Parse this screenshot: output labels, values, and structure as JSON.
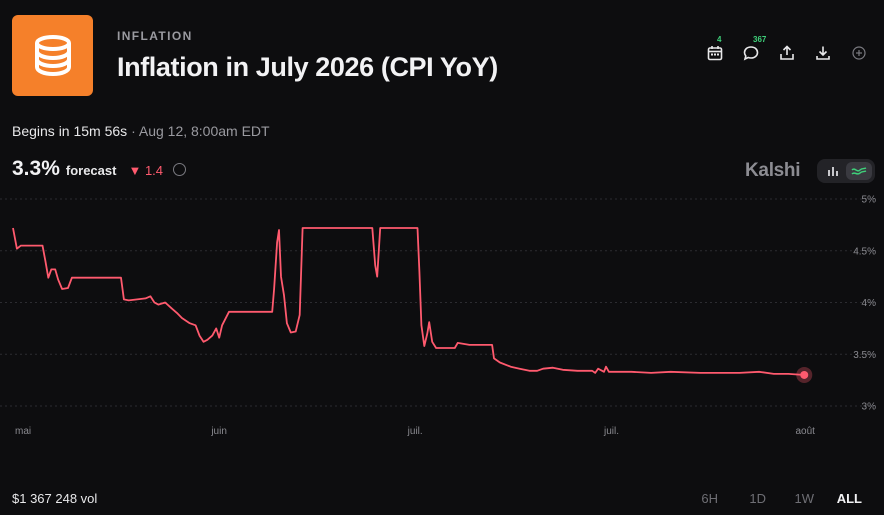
{
  "header": {
    "category": "INFLATION",
    "title": "Inflation in July 2026 (CPI YoY)",
    "logo_icon": "database-icon",
    "logo_color": "#f5802a"
  },
  "toolbar": {
    "calendar_count": "4",
    "comments_count": "367",
    "icons": [
      "calendar-icon",
      "comment-icon",
      "share-icon",
      "download-icon",
      "add-icon"
    ]
  },
  "status": {
    "begins": "Begins in 15m 56s",
    "separator": " · ",
    "date": "Aug 12, 8:00am EDT"
  },
  "forecast": {
    "value": "3.3%",
    "label": "forecast",
    "change_arrow": "▼",
    "change": "1.4"
  },
  "brand": "Kalshi",
  "footer": {
    "volume": "$1 367 248 vol",
    "ranges": [
      "6H",
      "1D",
      "1W",
      "ALL"
    ],
    "active_range": "ALL"
  },
  "colors": {
    "line": "#ff5a6e",
    "accent": "#3fd07a",
    "background": "#0d0d0f"
  },
  "chart_data": {
    "type": "line",
    "series": [
      {
        "values": [
          [
            0.0,
            4.72
          ],
          [
            0.4,
            4.52
          ],
          [
            0.8,
            4.55
          ],
          [
            3.0,
            4.55
          ],
          [
            3.3,
            4.4
          ],
          [
            3.6,
            4.24
          ],
          [
            3.9,
            4.32
          ],
          [
            4.3,
            4.32
          ],
          [
            4.6,
            4.22
          ],
          [
            5.0,
            4.13
          ],
          [
            5.6,
            4.14
          ],
          [
            6.0,
            4.24
          ],
          [
            11.0,
            4.24
          ],
          [
            11.3,
            4.03
          ],
          [
            11.8,
            4.02
          ],
          [
            13.5,
            4.04
          ],
          [
            14.0,
            4.06
          ],
          [
            14.4,
            4.0
          ],
          [
            14.8,
            3.98
          ],
          [
            15.5,
            4.0
          ],
          [
            16.2,
            3.94
          ],
          [
            16.7,
            3.9
          ],
          [
            17.2,
            3.85
          ],
          [
            18.0,
            3.8
          ],
          [
            18.6,
            3.78
          ],
          [
            19.0,
            3.68
          ],
          [
            19.4,
            3.62
          ],
          [
            19.8,
            3.64
          ],
          [
            20.3,
            3.68
          ],
          [
            20.7,
            3.75
          ],
          [
            21.0,
            3.66
          ],
          [
            21.3,
            3.78
          ],
          [
            22.0,
            3.91
          ],
          [
            26.4,
            3.91
          ],
          [
            26.6,
            4.13
          ],
          [
            26.9,
            4.58
          ],
          [
            27.1,
            4.7
          ],
          [
            27.3,
            4.25
          ],
          [
            27.6,
            4.07
          ],
          [
            27.9,
            3.8
          ],
          [
            28.3,
            3.71
          ],
          [
            28.8,
            3.72
          ],
          [
            29.2,
            3.88
          ],
          [
            29.5,
            4.72
          ],
          [
            36.6,
            4.72
          ],
          [
            36.9,
            4.36
          ],
          [
            37.1,
            4.25
          ],
          [
            37.4,
            4.72
          ],
          [
            41.2,
            4.72
          ],
          [
            41.4,
            4.3
          ],
          [
            41.6,
            3.78
          ],
          [
            41.9,
            3.58
          ],
          [
            42.2,
            3.7
          ],
          [
            42.4,
            3.81
          ],
          [
            42.7,
            3.62
          ],
          [
            43.1,
            3.56
          ],
          [
            45.0,
            3.56
          ],
          [
            45.3,
            3.61
          ],
          [
            46.5,
            3.59
          ],
          [
            48.8,
            3.59
          ],
          [
            49.0,
            3.46
          ],
          [
            49.6,
            3.42
          ],
          [
            50.7,
            3.38
          ],
          [
            51.6,
            3.36
          ],
          [
            52.6,
            3.34
          ],
          [
            53.4,
            3.34
          ],
          [
            54.0,
            3.36
          ],
          [
            55.0,
            3.37
          ],
          [
            56.0,
            3.35
          ],
          [
            57.5,
            3.34
          ],
          [
            59.0,
            3.34
          ],
          [
            59.3,
            3.32
          ],
          [
            59.6,
            3.36
          ],
          [
            60.2,
            3.33
          ],
          [
            60.4,
            3.38
          ],
          [
            60.7,
            3.33
          ],
          [
            63.0,
            3.33
          ],
          [
            65.0,
            3.32
          ],
          [
            67.0,
            3.33
          ],
          [
            70.0,
            3.32
          ],
          [
            74.0,
            3.32
          ],
          [
            76.0,
            3.33
          ],
          [
            77.5,
            3.31
          ],
          [
            79.0,
            3.31
          ],
          [
            80.6,
            3.3
          ]
        ]
      }
    ],
    "x_ticks": [
      {
        "label": "mai",
        "x": 0
      },
      {
        "label": "juin",
        "x": 20
      },
      {
        "label": "juil.",
        "x": 40
      },
      {
        "label": "juil.",
        "x": 60
      },
      {
        "label": "août",
        "x": 79.5
      }
    ],
    "y_ticks": [
      "3%",
      "3.5%",
      "4%",
      "4.5%",
      "5%"
    ],
    "ylim": [
      3,
      5
    ],
    "xlim": [
      0,
      82
    ],
    "grid": "horizontal dashed",
    "last_point_marker": true
  }
}
